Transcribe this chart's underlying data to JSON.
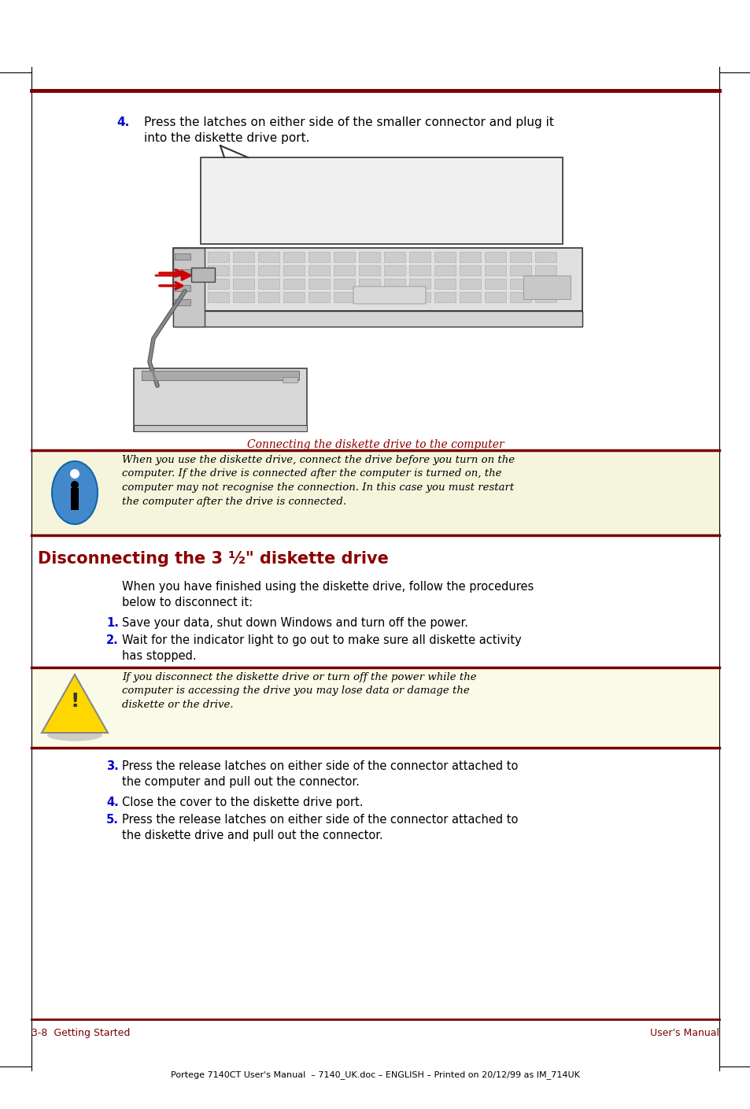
{
  "page_bg": "#ffffff",
  "dark_red": "#7B0000",
  "blue_num": "#0000CC",
  "note_bg": "#F5F5DC",
  "warn_bg": "#FAFAE8",
  "text_color": "#000000",
  "caption_color": "#8B0000",
  "section_color": "#8B0000",
  "step4_text": "Press the latches on either side of the smaller connector and plug it\ninto the diskette drive port.",
  "caption_text": "Connecting the diskette drive to the computer",
  "note_text": "When you use the diskette drive, connect the drive before you turn on the\ncomputer. If the drive is connected after the computer is turned on, the\ncomputer may not recognise the connection. In this case you must restart\nthe computer after the drive is connected.",
  "section_title": "Disconnecting the 3 ½\" diskette drive",
  "intro_text": "When you have finished using the diskette drive, follow the procedures\nbelow to disconnect it:",
  "step1_text": "Save your data, shut down Windows and turn off the power.",
  "step2_text": "Wait for the indicator light to go out to make sure all diskette activity\nhas stopped.",
  "warn_text": "If you disconnect the diskette drive or turn off the power while the\ncomputer is accessing the drive you may lose data or damage the\ndiskette or the drive.",
  "step3_text": "Press the release latches on either side of the connector attached to\nthe computer and pull out the connector.",
  "step4b_text": "Close the cover to the diskette drive port.",
  "step5_text": "Press the release latches on either side of the connector attached to\nthe diskette drive and pull out the connector.",
  "footer_left": "3-8  Getting Started",
  "footer_right": "User's Manual",
  "footer_bottom": "Portege 7140CT User's Manual  – 7140_UK.doc – ENGLISH – Printed on 20/12/99 as IM_714UK"
}
